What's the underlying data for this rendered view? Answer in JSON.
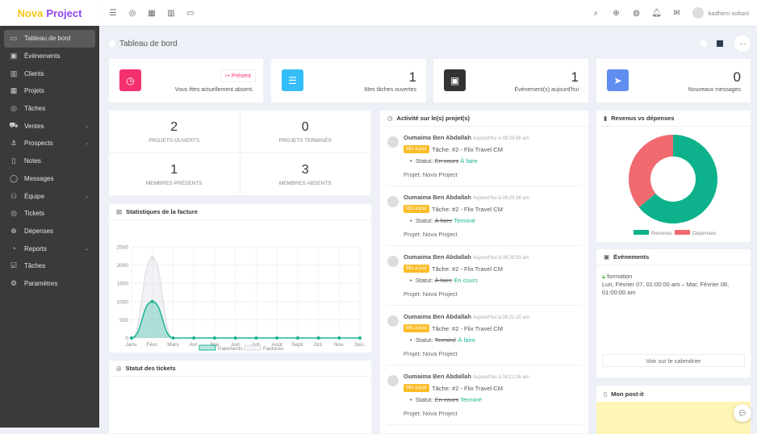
{
  "logo": {
    "part1": "Nova",
    "part2": "Project"
  },
  "sidebar": {
    "items": [
      {
        "label": "Tableau de bord",
        "icon": "monitor-icon",
        "active": true
      },
      {
        "label": "Évènements",
        "icon": "calendar-icon"
      },
      {
        "label": "Clients",
        "icon": "briefcase-icon"
      },
      {
        "label": "Projets",
        "icon": "grid-icon"
      },
      {
        "label": "Tâches",
        "icon": "check-circle-icon"
      },
      {
        "label": "Ventes",
        "icon": "cart-icon",
        "sub": true
      },
      {
        "label": "Prospects",
        "icon": "anchor-icon",
        "sub": true
      },
      {
        "label": "Notes",
        "icon": "book-icon"
      },
      {
        "label": "Messages",
        "icon": "message-icon"
      },
      {
        "label": "Équipe",
        "icon": "users-icon",
        "sub": true
      },
      {
        "label": "Tickets",
        "icon": "lifebuoy-icon"
      },
      {
        "label": "Dépenses",
        "icon": "arrow-circle-icon"
      },
      {
        "label": "Reports",
        "icon": "pie-icon",
        "sub": true
      },
      {
        "label": "Tâches",
        "icon": "check-square-icon"
      },
      {
        "label": "Paramètres",
        "icon": "settings-icon"
      }
    ]
  },
  "topbar": {
    "user": "kadhem soltani"
  },
  "page": {
    "title": "Tableau de bord",
    "more": "···"
  },
  "stats": {
    "clock": {
      "button": "Présent",
      "label": "Vous êtes actuellement absent."
    },
    "tasks": {
      "value": "1",
      "label": "Mes tâches ouvertes"
    },
    "events": {
      "value": "1",
      "label": "Évènement(s) aujourd'hui"
    },
    "messages": {
      "value": "0",
      "label": "Nouveaux messages"
    }
  },
  "projects": {
    "open": "2",
    "open_label": "Projets ouverts",
    "done": "0",
    "done_label": "Projets terminés",
    "present": "1",
    "present_label": "Membres présents",
    "absent": "3",
    "absent_label": "Membres absents"
  },
  "invoice": {
    "title": "Statistiques de la facture"
  },
  "tickets": {
    "title": "Statut des tickets"
  },
  "activity": {
    "title": "Activité sur le(s) projet(s)",
    "items": [
      {
        "user": "Oumaima Ben Abdallah",
        "time": "Aujourd'hui à 09:29:36 am",
        "badge": "Mis à jour",
        "task": "Tâche: #2 - Flix Travel CM",
        "statut": "Statut:",
        "old": "En cours",
        "new": "À faire",
        "project": "Projet: Nova Project"
      },
      {
        "user": "Oumaima Ben Abdallah",
        "time": "Aujourd'hui à 09:29:36 am",
        "badge": "Mis à jour",
        "task": "Tâche: #2 - Flix Travel CM",
        "statut": "Statut:",
        "old": "À faire",
        "new": "Terminé",
        "project": "Projet: Nova Project"
      },
      {
        "user": "Oumaima Ben Abdallah",
        "time": "Aujourd'hui à 09:29:33 am",
        "badge": "Mis à jour",
        "task": "Tâche: #2 - Flix Travel CM",
        "statut": "Statut:",
        "old": "À faire",
        "new": "En cours",
        "project": "Projet: Nova Project"
      },
      {
        "user": "Oumaima Ben Abdallah",
        "time": "Aujourd'hui à 09:21:10 am",
        "badge": "Mis à jour",
        "task": "Tâche: #2 - Flix Travel CM",
        "statut": "Statut:",
        "old": "Terminé",
        "new": "À faire",
        "project": "Projet: Nova Project"
      },
      {
        "user": "Oumaima Ben Abdallah",
        "time": "Aujourd'hui à 09:21:06 am",
        "badge": "Mis à jour",
        "task": "Tâche: #2 - Flix Travel CM",
        "statut": "Statut:",
        "old": "En cours",
        "new": "Terminé",
        "project": "Projet: Nova Project"
      }
    ]
  },
  "revenue": {
    "title": "Revenus vs dépenses"
  },
  "events_card": {
    "title": "Évènements",
    "event_name": "formation",
    "event_time": "Lun, Février 07, 01:00:00 am – Mar, Février 08, 01:00:00 am",
    "button": "Voir sur le calendrier"
  },
  "postit": {
    "title": "Mon post-it"
  },
  "colors": {
    "pink": "#f5306f",
    "blue": "#35bdf8",
    "dark": "#333333",
    "periwinkle": "#5f8ef0",
    "green": "#0db28c",
    "red": "#f06a6f",
    "postit": "#fff5b5"
  },
  "chart_data": [
    {
      "type": "area",
      "title": "Statistiques de la facture",
      "categories": [
        "Janv.",
        "Févr.",
        "Mars",
        "Avr.",
        "Mai",
        "Juin",
        "Juil.",
        "Août",
        "Sept.",
        "Oct.",
        "Nov.",
        "Déc."
      ],
      "series": [
        {
          "name": "Paiements",
          "values": [
            0,
            1000,
            0,
            0,
            0,
            0,
            0,
            0,
            0,
            0,
            0,
            0
          ],
          "color": "#1bb394"
        },
        {
          "name": "Factures",
          "values": [
            0,
            2200,
            0,
            0,
            0,
            0,
            0,
            0,
            0,
            0,
            0,
            0
          ],
          "color": "#d8dae2"
        }
      ],
      "yticks": [
        0,
        500,
        1000,
        1500,
        2000,
        2500
      ],
      "ylim": [
        0,
        2500
      ],
      "grid": true,
      "legend": "bottom"
    },
    {
      "type": "pie",
      "title": "Revenus vs dépenses",
      "labels": [
        "Revenus",
        "Dépenses"
      ],
      "values": [
        64,
        36
      ],
      "colors": [
        "#0db28c",
        "#f06a6f"
      ],
      "legend": "bottom"
    }
  ]
}
